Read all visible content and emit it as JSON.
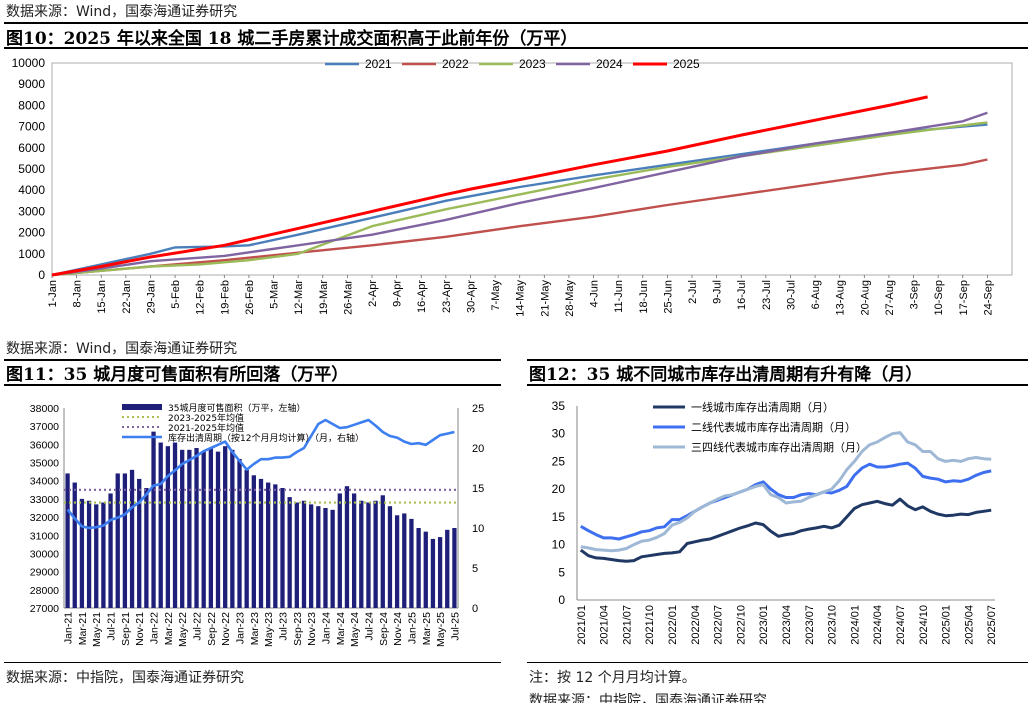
{
  "top": {
    "source": "数据来源：Wind，国泰海通证券研究",
    "title": "图10：2025 年以来全国 18 城二手房累计成交面积高于此前年份（万平）"
  },
  "mid": {
    "source": "数据来源：Wind，国泰海通证券研究",
    "title_left": "图11：35 城月度可售面积有所回落（万平）",
    "title_right": "图12：35 城不同城市库存出清周期有升有降（月）"
  },
  "bottom": {
    "source_left": "数据来源：中指院，国泰海通证券研究",
    "note_right": "注：按 12 个月月均计算。",
    "source_right_partial": "数据来源：中指院，国泰海通证券研究"
  },
  "colors": {
    "2021": "#4a7ebb",
    "2022": "#c0504d",
    "2023": "#9bbb59",
    "2024": "#8064a2",
    "2025": "#ff0000",
    "bar": "#1f1f7a",
    "avg23": "#a8c050",
    "avg21": "#8064a2",
    "cycle": "#3d7ff0",
    "tier1": "#1f3864",
    "tier2": "#3d6ff0",
    "tier34": "#9eb8d6"
  },
  "chart_data": [
    {
      "type": "line",
      "title": "2025 年以来全国 18 城二手房累计成交面积高于此前年份（万平）",
      "ylim": [
        0,
        10000
      ],
      "yticks": [
        0,
        1000,
        2000,
        3000,
        4000,
        5000,
        6000,
        7000,
        8000,
        9000,
        10000
      ],
      "xlabels": [
        "1-Jan",
        "8-Jan",
        "15-Jan",
        "22-Jan",
        "29-Jan",
        "5-Feb",
        "12-Feb",
        "19-Feb",
        "26-Feb",
        "5-Mar",
        "12-Mar",
        "19-Mar",
        "26-Mar",
        "2-Apr",
        "9-Apr",
        "16-Apr",
        "23-Apr",
        "30-Apr",
        "7-May",
        "14-May",
        "21-May",
        "28-May",
        "4-Jun",
        "11-Jun",
        "18-Jun",
        "25-Jun",
        "2-Jul",
        "9-Jul",
        "16-Jul",
        "23-Jul",
        "30-Jul",
        "6-Aug",
        "13-Aug",
        "20-Aug",
        "27-Aug",
        "3-Sep",
        "10-Sep",
        "17-Sep",
        "24-Sep"
      ],
      "x_unit": "day of year",
      "legend_position": "top",
      "series": [
        {
          "name": "2021",
          "x": [
            0,
            14,
            28,
            35,
            49,
            56,
            70,
            91,
            112,
            133,
            154,
            175,
            196,
            217,
            238,
            259,
            266
          ],
          "y": [
            0,
            500,
            1000,
            1300,
            1350,
            1400,
            1900,
            2700,
            3500,
            4150,
            4700,
            5200,
            5700,
            6200,
            6700,
            7000,
            7100
          ]
        },
        {
          "name": "2022",
          "x": [
            0,
            14,
            28,
            49,
            70,
            91,
            112,
            133,
            154,
            175,
            196,
            217,
            238,
            259,
            266
          ],
          "y": [
            0,
            200,
            400,
            700,
            1050,
            1400,
            1800,
            2300,
            2750,
            3300,
            3800,
            4300,
            4800,
            5200,
            5450
          ]
        },
        {
          "name": "2023",
          "x": [
            0,
            14,
            28,
            42,
            56,
            70,
            91,
            112,
            133,
            154,
            175,
            196,
            217,
            238,
            259,
            266
          ],
          "y": [
            0,
            200,
            400,
            500,
            700,
            1000,
            2300,
            3100,
            3800,
            4500,
            5100,
            5600,
            6100,
            6600,
            7050,
            7200
          ]
        },
        {
          "name": "2024",
          "x": [
            0,
            14,
            28,
            49,
            70,
            91,
            112,
            133,
            154,
            175,
            196,
            217,
            238,
            259,
            266
          ],
          "y": [
            0,
            300,
            650,
            900,
            1400,
            1900,
            2600,
            3400,
            4100,
            4850,
            5600,
            6200,
            6700,
            7250,
            7650
          ]
        },
        {
          "name": "2025",
          "x": [
            0,
            14,
            28,
            49,
            70,
            91,
            112,
            119,
            133,
            154,
            175,
            196,
            217,
            238,
            249
          ],
          "y": [
            0,
            400,
            850,
            1400,
            2200,
            3000,
            3800,
            4050,
            4500,
            5200,
            5850,
            6600,
            7300,
            8000,
            8400
          ]
        }
      ]
    },
    {
      "type": "bar",
      "title": "35 城月度可售面积有所回落（万平）",
      "ylim_left": [
        27000,
        38000
      ],
      "yticks_left": [
        27000,
        28000,
        29000,
        30000,
        31000,
        32000,
        33000,
        34000,
        35000,
        36000,
        37000,
        38000
      ],
      "ylim_right": [
        0,
        25
      ],
      "yticks_right": [
        0,
        5,
        10,
        15,
        20,
        25
      ],
      "xlabels": [
        "Jan-21",
        "Mar-21",
        "May-21",
        "Jul-21",
        "Sep-21",
        "Nov-21",
        "Jan-22",
        "Mar-22",
        "May-22",
        "Jul-22",
        "Sep-22",
        "Nov-22",
        "Jan-23",
        "Mar-23",
        "May-23",
        "Jul-23",
        "Sep-23",
        "Nov-23",
        "Jan-24",
        "Mar-24",
        "May-24",
        "Jul-24",
        "Sep-24",
        "Nov-24",
        "Jan-25",
        "Mar-25",
        "May-25",
        "Jul-25"
      ],
      "legend": [
        "35城月度可售面积（万平，左轴）",
        "2023-2025年均值",
        "2021-2025年均值",
        "库存出清周期（按12个月月均计算）（月，右轴）"
      ],
      "months": 55,
      "bars": [
        34400,
        33900,
        33000,
        32900,
        32700,
        32800,
        33300,
        34400,
        34400,
        34600,
        34100,
        33600,
        36700,
        36100,
        35900,
        36100,
        35700,
        35700,
        35800,
        35600,
        35800,
        35600,
        35900,
        35700,
        35200,
        34600,
        34300,
        34100,
        33900,
        33800,
        33600,
        33100,
        32800,
        32900,
        32700,
        32600,
        32500,
        32400,
        33300,
        33700,
        33300,
        32900,
        32800,
        32900,
        33200,
        32600,
        32100,
        32200,
        31900,
        31400,
        31200,
        30800,
        30900,
        31300,
        31400
      ],
      "avg_2023_2025": 32800,
      "avg_2021_2025": 33500,
      "cycle": [
        12.3,
        11.2,
        10.2,
        10.0,
        10.1,
        10.3,
        11.0,
        11.3,
        11.7,
        12.6,
        13.2,
        14.2,
        15.3,
        15.5,
        16.5,
        17.2,
        18.0,
        18.5,
        19.0,
        19.6,
        20.0,
        20.4,
        20.8,
        19.5,
        18.4,
        17.3,
        18.0,
        18.6,
        18.6,
        18.8,
        18.8,
        18.9,
        19.5,
        20.0,
        21.5,
        23.0,
        23.5,
        23.0,
        22.5,
        22.6,
        22.9,
        23.2,
        23.5,
        22.8,
        22.0,
        21.5,
        21.3,
        20.8,
        20.5,
        20.6,
        20.4,
        21.0,
        21.6,
        21.8,
        22.0
      ]
    },
    {
      "type": "line",
      "title": "35 城不同城市库存出清周期有升有降（月）",
      "ylim": [
        0,
        35
      ],
      "yticks": [
        0,
        5,
        10,
        15,
        20,
        25,
        30,
        35
      ],
      "xlabels": [
        "2021/01",
        "2021/04",
        "2021/07",
        "2021/10",
        "2022/01",
        "2022/04",
        "2022/07",
        "2022/10",
        "2023/01",
        "2023/04",
        "2023/07",
        "2023/10",
        "2024/01",
        "2024/04",
        "2024/07",
        "2024/10",
        "2025/01",
        "2025/04",
        "2025/07"
      ],
      "legend_position": "top-left",
      "months": 55,
      "series": [
        {
          "name": "一线城市库存出清周期（月）",
          "values": [
            9.0,
            8.0,
            7.6,
            7.5,
            7.3,
            7.1,
            7.0,
            7.1,
            7.8,
            8.0,
            8.2,
            8.4,
            8.5,
            8.7,
            10.2,
            10.5,
            10.8,
            11.0,
            11.5,
            12.0,
            12.5,
            13.0,
            13.4,
            13.9,
            13.6,
            12.4,
            11.5,
            11.8,
            12.0,
            12.5,
            12.8,
            13.0,
            13.3,
            13.0,
            13.5,
            15.0,
            16.5,
            17.2,
            17.5,
            17.8,
            17.4,
            17.1,
            18.2,
            17.0,
            16.3,
            16.8,
            16.0,
            15.5,
            15.2,
            15.3,
            15.5,
            15.4,
            15.8,
            16.0,
            16.2
          ]
        },
        {
          "name": "二线代表城市库存出清周期（月）",
          "values": [
            13.3,
            12.5,
            11.8,
            11.2,
            11.2,
            11.0,
            11.4,
            11.8,
            12.3,
            12.5,
            13.0,
            13.2,
            14.5,
            14.5,
            15.2,
            16.0,
            16.8,
            17.5,
            18.0,
            18.5,
            19.0,
            19.5,
            20.0,
            20.8,
            21.3,
            20.0,
            19.0,
            18.5,
            18.5,
            19.0,
            19.2,
            19.0,
            19.5,
            19.3,
            19.8,
            20.5,
            22.5,
            23.8,
            24.5,
            24.0,
            24.0,
            24.2,
            24.5,
            24.7,
            23.8,
            22.3,
            22.0,
            21.8,
            21.3,
            21.5,
            21.4,
            21.8,
            22.5,
            23.0,
            23.3
          ]
        },
        {
          "name": "三四线代表城市库存出清周期（月）",
          "values": [
            9.6,
            9.4,
            9.1,
            9.0,
            8.9,
            9.0,
            9.3,
            10.0,
            10.6,
            10.8,
            11.3,
            12.0,
            13.5,
            14.0,
            14.8,
            16.0,
            16.8,
            17.5,
            18.2,
            18.8,
            19.0,
            19.5,
            20.0,
            20.5,
            20.8,
            19.0,
            18.5,
            17.5,
            17.7,
            17.8,
            18.5,
            19.0,
            19.5,
            20.0,
            21.5,
            23.5,
            25.0,
            26.8,
            28.0,
            28.5,
            29.3,
            30.0,
            30.2,
            28.5,
            28.0,
            26.8,
            26.8,
            25.5,
            25.0,
            25.2,
            25.0,
            25.5,
            25.7,
            25.5,
            25.4
          ]
        }
      ]
    }
  ]
}
